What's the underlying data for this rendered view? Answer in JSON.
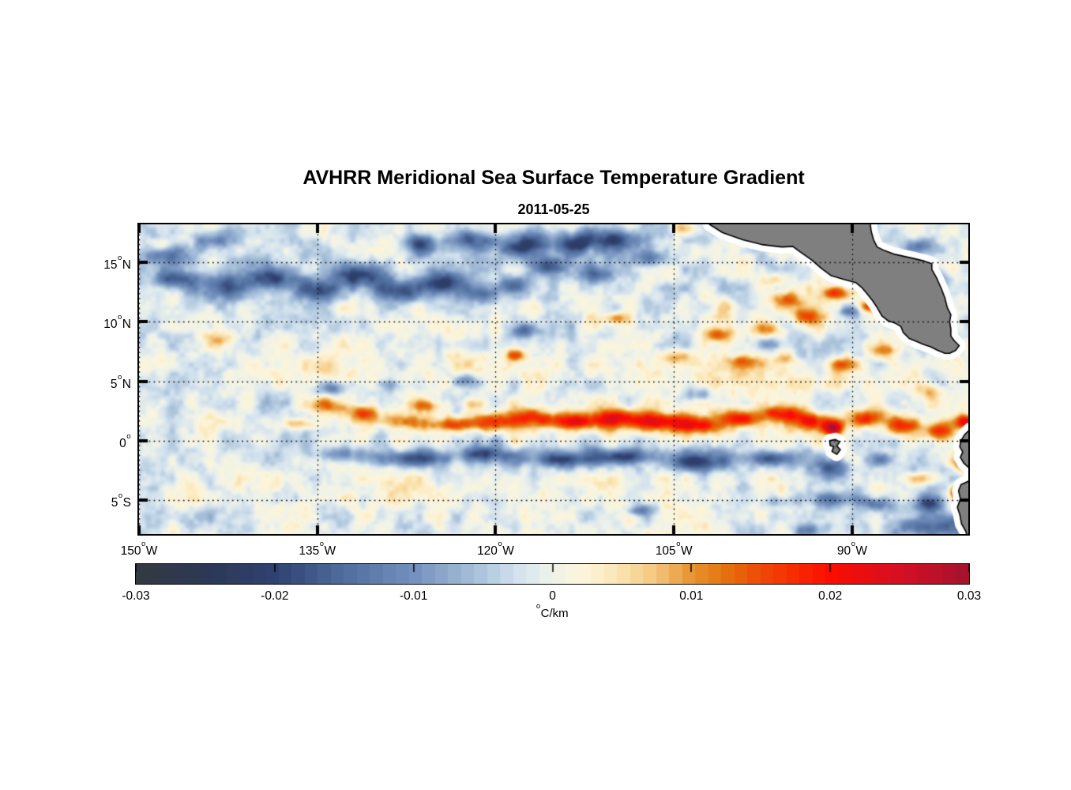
{
  "chart_data": {
    "type": "heatmap",
    "title": "AVHRR Meridional Sea Surface Temperature Gradient",
    "subtitle": "2011-05-25",
    "degree_symbol": "o",
    "lon_range": [
      -150,
      -80.23
    ],
    "lat_range": [
      -7.85,
      18.2
    ],
    "x_ticks": [
      {
        "value": -150,
        "label": "150",
        "hem": "W"
      },
      {
        "value": -135,
        "label": "135",
        "hem": "W"
      },
      {
        "value": -120,
        "label": "120",
        "hem": "W"
      },
      {
        "value": -105,
        "label": "105",
        "hem": "W"
      },
      {
        "value": -90,
        "label": "90",
        "hem": "W"
      }
    ],
    "y_ticks": [
      {
        "value": 15,
        "label": "15",
        "hem": "N"
      },
      {
        "value": 10,
        "label": "10",
        "hem": "N"
      },
      {
        "value": 5,
        "label": "5",
        "hem": "N"
      },
      {
        "value": 0,
        "label": "0",
        "hem": ""
      },
      {
        "value": -5,
        "label": "5",
        "hem": "S"
      }
    ],
    "grid": "dotted",
    "colorbar": {
      "min": -0.03,
      "max": 0.03,
      "levels": 64,
      "ticks": [
        {
          "value": -0.03,
          "label": "-0.03"
        },
        {
          "value": -0.02,
          "label": "-0.02"
        },
        {
          "value": -0.01,
          "label": "-0.01"
        },
        {
          "value": 0,
          "label": "0"
        },
        {
          "value": 0.01,
          "label": "0.01"
        },
        {
          "value": 0.02,
          "label": "0.02"
        },
        {
          "value": 0.03,
          "label": "0.03"
        }
      ],
      "unit_degree": "o",
      "unit": "C/km"
    },
    "colormap": [
      [
        0.0,
        "#343941"
      ],
      [
        0.083,
        "#2c3854"
      ],
      [
        0.167,
        "#2e4170"
      ],
      [
        0.25,
        "#4f6d9d"
      ],
      [
        0.333,
        "#7390bd"
      ],
      [
        0.417,
        "#aec6dd"
      ],
      [
        0.458,
        "#d3e2ee"
      ],
      [
        0.5,
        "#eff3e9"
      ],
      [
        0.542,
        "#fdf4d9"
      ],
      [
        0.583,
        "#fae3b0"
      ],
      [
        0.625,
        "#f4c57d"
      ],
      [
        0.667,
        "#e79530"
      ],
      [
        0.708,
        "#e4720f"
      ],
      [
        0.75,
        "#ef4905"
      ],
      [
        0.833,
        "#fc0d00"
      ],
      [
        0.917,
        "#d50f24"
      ],
      [
        1.0,
        "#a4122e"
      ]
    ],
    "land_color": "#7f7f7f",
    "coast_buffer_color": "#ffffff",
    "coast_outline_color": "#000000",
    "field": {
      "base": -0.0012,
      "noise": {
        "seed": 11,
        "scale_deg": 1.6,
        "amplitude": 0.0042
      },
      "features": [
        [
          -147.5,
          15.6,
          2.2,
          1.0,
          -0.014
        ],
        [
          -144.0,
          16.9,
          1.8,
          0.8,
          -0.012
        ],
        [
          -147.2,
          13.6,
          1.8,
          0.9,
          -0.015
        ],
        [
          -143.0,
          12.9,
          2.0,
          1.0,
          -0.014
        ],
        [
          -138.8,
          13.6,
          1.9,
          0.9,
          -0.015
        ],
        [
          -135.0,
          12.6,
          1.7,
          0.8,
          -0.013
        ],
        [
          -131.5,
          13.9,
          2.0,
          0.9,
          -0.016
        ],
        [
          -128.0,
          12.6,
          1.9,
          0.9,
          -0.017
        ],
        [
          -124.5,
          13.3,
          1.9,
          0.9,
          -0.017
        ],
        [
          -121.2,
          12.4,
          1.5,
          0.8,
          -0.015
        ],
        [
          -126.2,
          16.6,
          1.8,
          0.8,
          -0.014
        ],
        [
          -122.0,
          17.0,
          1.6,
          0.8,
          -0.015
        ],
        [
          -117.6,
          16.4,
          2.0,
          0.9,
          -0.017
        ],
        [
          -113.2,
          16.7,
          1.8,
          0.9,
          -0.016
        ],
        [
          -109.8,
          17.0,
          1.6,
          0.8,
          -0.015
        ],
        [
          -118.6,
          13.1,
          1.4,
          0.7,
          -0.011
        ],
        [
          -115.3,
          14.7,
          1.5,
          0.8,
          -0.013
        ],
        [
          -111.5,
          14.0,
          1.6,
          0.8,
          -0.012
        ],
        [
          -106.8,
          15.4,
          1.4,
          0.7,
          -0.01
        ],
        [
          -117.5,
          9.2,
          1.1,
          0.6,
          -0.012
        ],
        [
          -133.6,
          4.4,
          1.3,
          0.6,
          -0.011
        ],
        [
          -128.6,
          4.7,
          1.2,
          0.6,
          -0.01
        ],
        [
          -122.6,
          5.1,
          1.1,
          0.6,
          -0.01
        ],
        [
          -102.6,
          3.9,
          1.2,
          0.6,
          -0.01
        ],
        [
          -94.6,
          7.0,
          0.9,
          0.5,
          -0.009
        ],
        [
          -90.2,
          10.9,
          0.9,
          0.5,
          -0.012
        ],
        [
          -96.8,
          8.1,
          1.2,
          0.6,
          -0.01
        ],
        [
          -133.0,
          -1.1,
          2.4,
          0.6,
          -0.009
        ],
        [
          -127.0,
          -1.5,
          2.4,
          0.6,
          -0.011
        ],
        [
          -121.0,
          -1.1,
          2.4,
          0.6,
          -0.012
        ],
        [
          -115.0,
          -1.6,
          2.4,
          0.6,
          -0.013
        ],
        [
          -109.0,
          -1.3,
          2.4,
          0.6,
          -0.014
        ],
        [
          -103.0,
          -1.8,
          2.4,
          0.7,
          -0.014
        ],
        [
          -97.0,
          -1.5,
          2.0,
          0.6,
          -0.013
        ],
        [
          -91.6,
          -2.3,
          1.5,
          0.7,
          -0.014
        ],
        [
          -87.6,
          -1.6,
          1.1,
          0.6,
          -0.012
        ],
        [
          -112.0,
          -1.4,
          22.0,
          0.9,
          -0.005
        ],
        [
          -108.0,
          -5.9,
          1.1,
          0.5,
          -0.011
        ],
        [
          -96.2,
          -5.1,
          1.4,
          0.6,
          -0.01
        ],
        [
          -91.6,
          -4.9,
          1.6,
          0.7,
          -0.015
        ],
        [
          -88.0,
          -5.3,
          1.3,
          0.6,
          -0.014
        ],
        [
          -84.2,
          -7.4,
          1.8,
          0.8,
          -0.015
        ],
        [
          -93.8,
          -7.6,
          1.4,
          0.6,
          -0.012
        ],
        [
          -83.5,
          -5.2,
          1.3,
          0.8,
          -0.018
        ],
        [
          -81.5,
          -7.0,
          1.5,
          1.0,
          -0.016
        ],
        [
          -84.6,
          16.3,
          1.1,
          0.7,
          -0.012
        ],
        [
          -82.6,
          13.6,
          0.9,
          0.8,
          -0.011
        ],
        [
          -83.8,
          10.6,
          0.7,
          0.4,
          -0.013
        ],
        [
          -134.0,
          13.8,
          11.0,
          2.0,
          -0.005
        ],
        [
          -114.0,
          16.3,
          9.0,
          1.4,
          -0.005
        ],
        [
          -136.6,
          1.4,
          1.6,
          0.5,
          0.011
        ],
        [
          -134.0,
          2.9,
          1.8,
          0.7,
          0.011
        ],
        [
          -131.0,
          2.3,
          1.8,
          0.6,
          0.013
        ],
        [
          -127.5,
          1.6,
          2.2,
          0.6,
          0.012
        ],
        [
          -123.8,
          1.3,
          2.2,
          0.6,
          0.013
        ],
        [
          -120.3,
          1.6,
          1.9,
          0.7,
          0.015
        ],
        [
          -116.8,
          1.9,
          2.0,
          0.7,
          0.015
        ],
        [
          -113.3,
          1.6,
          2.0,
          0.7,
          0.017
        ],
        [
          -109.8,
          1.9,
          1.9,
          0.7,
          0.016
        ],
        [
          -106.3,
          1.6,
          1.9,
          0.7,
          0.019
        ],
        [
          -102.8,
          1.3,
          1.9,
          0.7,
          0.018
        ],
        [
          -99.3,
          1.9,
          1.9,
          0.7,
          0.017
        ],
        [
          -95.8,
          2.3,
          1.7,
          0.7,
          0.016
        ],
        [
          -93.0,
          1.6,
          1.6,
          0.7,
          0.02
        ],
        [
          -91.6,
          1.0,
          0.8,
          0.6,
          0.026
        ],
        [
          -88.6,
          1.9,
          1.4,
          0.7,
          0.018
        ],
        [
          -85.6,
          1.2,
          1.4,
          0.8,
          0.017
        ],
        [
          -82.6,
          0.8,
          1.3,
          0.9,
          0.019
        ],
        [
          -80.5,
          1.6,
          0.9,
          0.6,
          0.022
        ],
        [
          -110.0,
          1.6,
          22.0,
          1.1,
          0.006
        ],
        [
          -80.8,
          -1.8,
          0.8,
          0.8,
          0.014
        ],
        [
          -84.5,
          -3.2,
          1.4,
          0.5,
          0.012
        ],
        [
          -81.3,
          -4.3,
          0.4,
          0.6,
          0.022
        ],
        [
          -101.2,
          8.9,
          1.6,
          0.6,
          0.013
        ],
        [
          -97.2,
          9.4,
          1.4,
          0.6,
          0.012
        ],
        [
          -93.6,
          10.4,
          1.3,
          0.6,
          0.014
        ],
        [
          -91.4,
          12.4,
          1.1,
          0.6,
          0.02
        ],
        [
          -88.4,
          11.3,
          0.9,
          0.5,
          0.019
        ],
        [
          -95.6,
          11.9,
          1.3,
          0.6,
          0.012
        ],
        [
          -110.0,
          10.3,
          1.3,
          0.5,
          0.012
        ],
        [
          -104.8,
          7.1,
          1.4,
          0.6,
          0.011
        ],
        [
          -99.2,
          6.6,
          1.3,
          0.6,
          0.012
        ],
        [
          -95.2,
          6.9,
          1.2,
          0.5,
          0.011
        ],
        [
          -90.6,
          6.4,
          1.3,
          0.6,
          0.012
        ],
        [
          -87.2,
          7.6,
          1.1,
          0.6,
          0.01
        ],
        [
          -84.6,
          9.9,
          0.7,
          0.4,
          0.017
        ],
        [
          -118.4,
          7.2,
          0.8,
          0.5,
          0.013
        ],
        [
          -121.8,
          3.1,
          1.1,
          0.5,
          0.011
        ],
        [
          -125.8,
          2.9,
          1.3,
          0.5,
          0.01
        ],
        [
          -104.2,
          17.8,
          0.9,
          0.6,
          0.014
        ],
        [
          -96.4,
          13.6,
          1.1,
          0.6,
          0.009
        ],
        [
          -83.6,
          4.2,
          1.1,
          0.8,
          0.009
        ],
        [
          -81.8,
          7.6,
          0.8,
          0.7,
          0.011
        ],
        [
          -143.2,
          8.6,
          1.1,
          0.6,
          0.008
        ],
        [
          -148.2,
          16.4,
          0.9,
          0.5,
          0.008
        ],
        [
          -131.0,
          6.2,
          14.0,
          1.8,
          0.0035
        ],
        [
          -99.0,
          5.4,
          13.0,
          1.9,
          0.0035
        ],
        [
          -118.0,
          -4.2,
          20.0,
          1.6,
          0.0028
        ],
        [
          -146.0,
          15.9,
          3.5,
          1.1,
          0.0035
        ],
        [
          -99.0,
          10.8,
          5.0,
          1.2,
          0.004
        ]
      ]
    },
    "land": {
      "central_america": [
        [
          -102.0,
          18.4
        ],
        [
          -102.0,
          18.2
        ],
        [
          -100.9,
          17.5
        ],
        [
          -99.2,
          16.9
        ],
        [
          -97.6,
          16.5
        ],
        [
          -95.9,
          16.3
        ],
        [
          -95.0,
          16.35
        ],
        [
          -94.4,
          15.9
        ],
        [
          -93.4,
          15.2
        ],
        [
          -92.6,
          14.5
        ],
        [
          -91.8,
          13.9
        ],
        [
          -90.8,
          13.6
        ],
        [
          -89.7,
          13.3
        ],
        [
          -89.2,
          12.9
        ],
        [
          -88.7,
          12.3
        ],
        [
          -88.3,
          11.8
        ],
        [
          -87.9,
          11.2
        ],
        [
          -87.5,
          10.5
        ],
        [
          -87.0,
          10.1
        ],
        [
          -86.4,
          9.9
        ],
        [
          -85.9,
          9.6
        ],
        [
          -85.7,
          9.1
        ],
        [
          -85.2,
          8.6
        ],
        [
          -84.7,
          8.4
        ],
        [
          -84.0,
          8.1
        ],
        [
          -83.4,
          7.9
        ],
        [
          -82.8,
          7.6
        ],
        [
          -82.2,
          7.35
        ],
        [
          -81.8,
          7.35
        ],
        [
          -81.3,
          7.6
        ],
        [
          -81.0,
          8.0
        ],
        [
          -81.4,
          8.4
        ],
        [
          -81.7,
          8.8
        ],
        [
          -81.7,
          9.4
        ],
        [
          -81.8,
          10.0
        ],
        [
          -81.7,
          10.6
        ],
        [
          -82.0,
          11.2
        ],
        [
          -82.2,
          12.0
        ],
        [
          -82.5,
          12.8
        ],
        [
          -82.9,
          13.7
        ],
        [
          -83.3,
          14.4
        ],
        [
          -83.3,
          14.9
        ],
        [
          -83.9,
          15.1
        ],
        [
          -84.7,
          15.3
        ],
        [
          -85.6,
          15.5
        ],
        [
          -86.5,
          15.7
        ],
        [
          -87.3,
          16.0
        ],
        [
          -87.9,
          16.3
        ],
        [
          -88.2,
          16.9
        ],
        [
          -88.4,
          17.6
        ],
        [
          -88.5,
          18.4
        ]
      ],
      "south_america": [
        [
          -80.1,
          0.95
        ],
        [
          -80.55,
          0.5
        ],
        [
          -80.85,
          0.0
        ],
        [
          -80.95,
          -0.5
        ],
        [
          -80.7,
          -0.95
        ],
        [
          -80.9,
          -1.4
        ],
        [
          -80.6,
          -1.9
        ],
        [
          -80.15,
          -2.3
        ],
        [
          -79.95,
          -2.8
        ],
        [
          -80.2,
          -3.4
        ],
        [
          -80.85,
          -3.7
        ],
        [
          -81.05,
          -4.2
        ],
        [
          -80.9,
          -4.9
        ],
        [
          -81.15,
          -5.6
        ],
        [
          -80.95,
          -6.2
        ],
        [
          -80.8,
          -7.0
        ],
        [
          -80.45,
          -7.6
        ],
        [
          -80.3,
          -8.1
        ],
        [
          -79.5,
          -8.1
        ],
        [
          -79.5,
          0.95
        ]
      ],
      "galapagos": [
        [
          -91.9,
          0.0
        ],
        [
          -91.4,
          0.1
        ],
        [
          -91.05,
          -0.1
        ],
        [
          -91.3,
          -0.45
        ],
        [
          -91.0,
          -0.75
        ],
        [
          -91.3,
          -1.15
        ],
        [
          -91.7,
          -0.9
        ],
        [
          -91.55,
          -0.5
        ],
        [
          -91.85,
          -0.4
        ]
      ]
    }
  }
}
